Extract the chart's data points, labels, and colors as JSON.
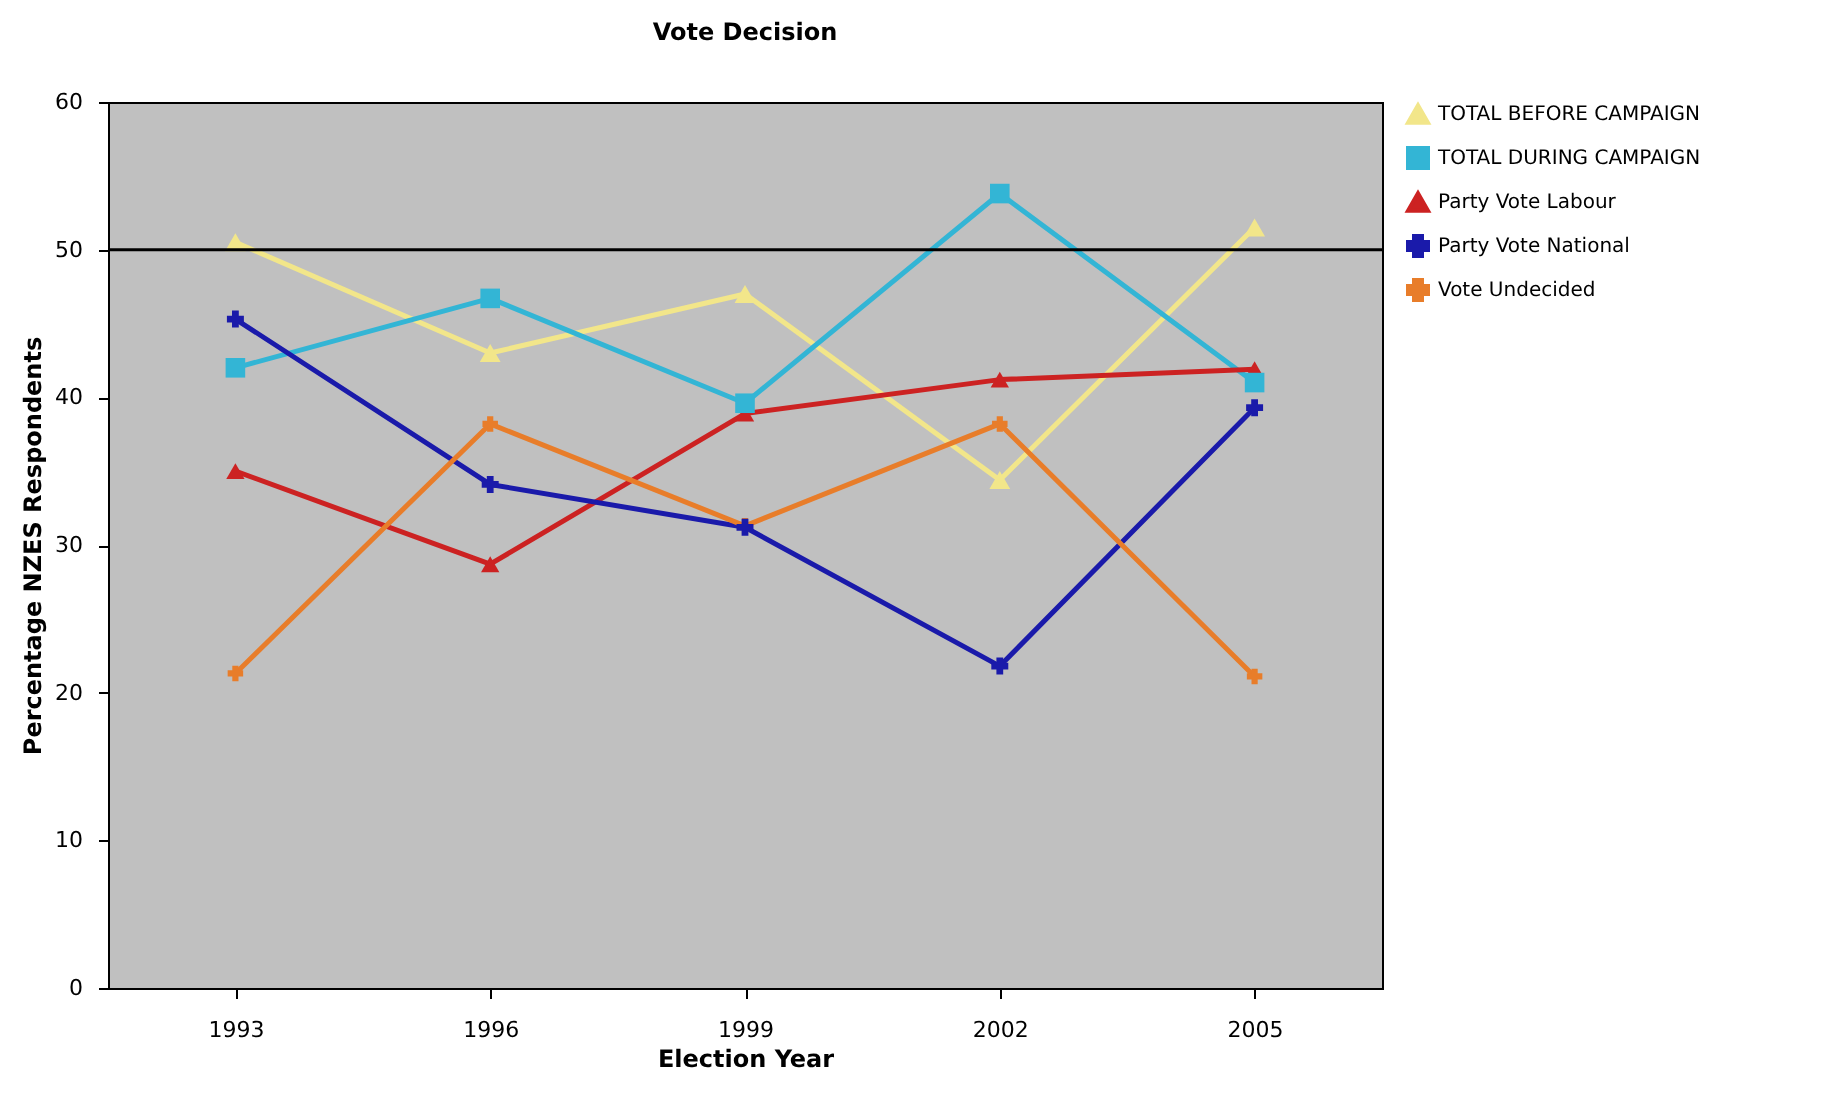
{
  "chart_data": {
    "type": "line",
    "title": "Vote Decision",
    "xlabel": "Election Year",
    "ylabel": "Percentage NZES Respondents",
    "categories": [
      "1993",
      "1996",
      "1999",
      "2002",
      "2005"
    ],
    "series": [
      {
        "name": "TOTAL BEFORE CAMPAIGN",
        "color": "#f2e68a",
        "marker": "triangle",
        "values": [
          50.5,
          43,
          47,
          34.4,
          51.5
        ]
      },
      {
        "name": "TOTAL DURING CAMPAIGN",
        "color": "#33b5d5",
        "marker": "square",
        "values": [
          42,
          46.7,
          39.6,
          53.8,
          41
        ]
      },
      {
        "name": "Party Vote Labour",
        "color": "#cc2222",
        "marker": "triangle",
        "values": [
          35,
          28.7,
          38.9,
          41.2,
          41.9
        ]
      },
      {
        "name": "Party Vote National",
        "color": "#1a1aaa",
        "marker": "cross",
        "values": [
          45.3,
          34.1,
          31.2,
          21.8,
          39.3
        ]
      },
      {
        "name": "Vote Undecided",
        "color": "#e87d2a",
        "marker": "cross",
        "values": [
          21.3,
          38.2,
          31.3,
          38.2,
          21.1
        ]
      }
    ],
    "ylim": [
      0,
      60
    ],
    "yticks": [
      0,
      10,
      20,
      30,
      40,
      50,
      60
    ],
    "ref_lines": [
      {
        "axis": "y",
        "value": 50,
        "color": "#000000"
      }
    ],
    "grid": false,
    "legend": "right"
  }
}
